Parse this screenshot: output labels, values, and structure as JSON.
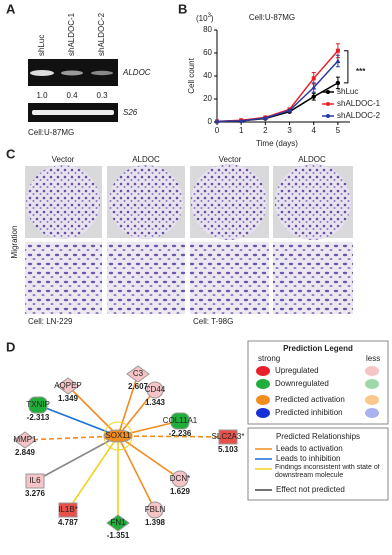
{
  "panel_labels": [
    "A",
    "B",
    "C",
    "D"
  ],
  "panel_a": {
    "lanes": [
      "shLuc",
      "shALDOC-1",
      "shALDOC-2"
    ],
    "bands": [
      "ALDOC",
      "S26"
    ],
    "ratios": [
      "1.0",
      "0.4",
      "0.3"
    ],
    "caption": "Cell:U-87MG"
  },
  "chart_data": {
    "type": "line",
    "title": "Cell:U-87MG",
    "y_unit": {
      "base": "(10",
      "exponent": "3",
      "close": ")"
    },
    "xlabel": "Time (days)",
    "ylabel": "Cell count",
    "x": [
      0,
      1,
      2,
      3,
      4,
      5
    ],
    "series": [
      {
        "name": "shLuc",
        "color": "#000000",
        "values": [
          0.5,
          1,
          3,
          9,
          22,
          34
        ],
        "errors": [
          0.2,
          0.3,
          0.5,
          1,
          3,
          5
        ]
      },
      {
        "name": "shALDOC-1",
        "color": "#e8202a",
        "values": [
          0.5,
          1.5,
          4,
          11,
          38,
          62
        ],
        "errors": [
          0.2,
          0.3,
          0.5,
          1,
          5,
          6
        ]
      },
      {
        "name": "shALDOC-2",
        "color": "#2a3a9c",
        "values": [
          0.5,
          1,
          3.5,
          10,
          30,
          53
        ],
        "errors": [
          0.2,
          0.3,
          0.5,
          1,
          4,
          5
        ]
      }
    ],
    "xlim": [
      0,
      5.5
    ],
    "ylim": [
      0,
      80
    ],
    "xticks": [
      0,
      1,
      2,
      3,
      4,
      5
    ],
    "yticks": [
      0,
      20,
      40,
      60,
      80
    ],
    "annotation": "***"
  },
  "panel_c": {
    "headers": [
      "Vector",
      "ALDOC",
      "Vector",
      "ALDOC"
    ],
    "row_label": "Migration",
    "cells": [
      "Cell: LN-229",
      "Cell: T-98G"
    ]
  },
  "panel_d": {
    "nodes": [
      {
        "label": "SOX11"
      },
      {
        "label": "AQPEP",
        "value": 1.349
      },
      {
        "label": "C3",
        "value": 2.607
      },
      {
        "label": "CD44",
        "value": 1.343
      },
      {
        "label": "TXNIP",
        "value": -2.313
      },
      {
        "label": "COL11A1",
        "value": -2.236
      },
      {
        "label": "MMP1",
        "value": 2.849
      },
      {
        "label": "SLC2A3*",
        "value": 5.103
      },
      {
        "label": "IL6",
        "value": 3.276
      },
      {
        "label": "DCN*",
        "value": 1.629
      },
      {
        "label": "IL1B*",
        "value": 4.787
      },
      {
        "label": "FBLN",
        "value": 1.398
      },
      {
        "label": "FN1",
        "value": -1.351
      }
    ],
    "legend": {
      "title": "Prediction Legend",
      "strong": "strong",
      "less": "less",
      "items": [
        "Upregulated",
        "Downregulated",
        "Predicted activation",
        "Predicted inhibition"
      ],
      "relationships_title": "Predicted Relationships",
      "relationships": [
        "Leads to activation",
        "Leads to inhibition",
        "Findings inconsistent with state of downstream molecule",
        "Effect not predicted"
      ]
    }
  }
}
